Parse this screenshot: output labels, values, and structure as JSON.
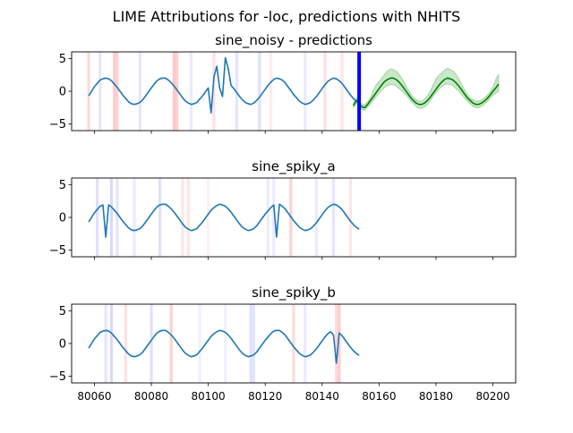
{
  "suptitle": "LIME Attributions for -loc, predictions with NHITS",
  "colors": {
    "series": "#1f77b4",
    "prediction": "#008000",
    "prediction_band": "#2ca02c",
    "cutoff_line": "#0000ff",
    "attr_positive": "#ff0000",
    "attr_negative": "#0000ff"
  },
  "chart_data": [
    {
      "type": "line",
      "title": "sine_noisy - predictions",
      "xlim": [
        80052,
        80208
      ],
      "ylim": [
        -6,
        6
      ],
      "yticks": [
        -5,
        0,
        5
      ],
      "xticks": [
        80060,
        80080,
        80100,
        80120,
        80140,
        80160,
        80180,
        80200
      ],
      "show_xtick_labels": false,
      "history": {
        "x": [
          80058,
          80059,
          80060,
          80061,
          80062,
          80063,
          80064,
          80065,
          80066,
          80067,
          80068,
          80069,
          80070,
          80071,
          80072,
          80073,
          80074,
          80075,
          80076,
          80077,
          80078,
          80079,
          80080,
          80081,
          80082,
          80083,
          80084,
          80085,
          80086,
          80087,
          80088,
          80089,
          80090,
          80091,
          80092,
          80093,
          80094,
          80095,
          80096,
          80097,
          80098,
          80099,
          80100,
          80101,
          80102,
          80103,
          80104,
          80105,
          80106,
          80107,
          80108,
          80109,
          80110,
          80111,
          80112,
          80113,
          80114,
          80115,
          80116,
          80117,
          80118,
          80119,
          80120,
          80121,
          80122,
          80123,
          80124,
          80125,
          80126,
          80127,
          80128,
          80129,
          80130,
          80131,
          80132,
          80133,
          80134,
          80135,
          80136,
          80137,
          80138,
          80139,
          80140,
          80141,
          80142,
          80143,
          80144,
          80145,
          80146,
          80147,
          80148,
          80149,
          80150,
          80151,
          80152,
          80153
        ],
        "y": [
          -0.7,
          0.0,
          0.7,
          1.2,
          1.7,
          1.9,
          2.0,
          1.9,
          1.6,
          1.1,
          0.6,
          0.0,
          -0.6,
          -1.1,
          -1.6,
          -1.9,
          -2.0,
          -1.9,
          -1.7,
          -1.3,
          -0.7,
          -0.1,
          0.5,
          1.1,
          1.6,
          1.9,
          2.0,
          2.0,
          1.7,
          1.3,
          0.8,
          0.2,
          -0.4,
          -1.0,
          -1.5,
          -1.8,
          -2.0,
          -1.9,
          -1.7,
          -1.2,
          -0.7,
          -0.1,
          0.5,
          -3.3,
          2.2,
          3.8,
          0.5,
          -0.8,
          5.1,
          3.5,
          0.9,
          0.4,
          -0.2,
          -0.8,
          -1.3,
          -1.7,
          -1.9,
          -2.0,
          -1.8,
          -1.4,
          -0.9,
          -0.3,
          0.3,
          0.9,
          1.4,
          1.8,
          2.0,
          1.9,
          1.7,
          1.3,
          0.7,
          0.1,
          -0.5,
          -1.0,
          -1.5,
          -1.8,
          -2.0,
          -1.9,
          -1.7,
          -1.3,
          -0.8,
          -0.2,
          0.4,
          1.0,
          1.5,
          1.8,
          2.0,
          1.9,
          1.6,
          1.2,
          0.6,
          0.0,
          -0.6,
          -1.1,
          -1.5,
          -1.8
        ]
      },
      "prediction": {
        "x": [
          80151,
          80152,
          80153,
          80154,
          80155,
          80156,
          80157,
          80158,
          80159,
          80160,
          80161,
          80162,
          80163,
          80164,
          80165,
          80166,
          80167,
          80168,
          80169,
          80170,
          80171,
          80172,
          80173,
          80174,
          80175,
          80176,
          80177,
          80178,
          80179,
          80180,
          80181,
          80182,
          80183,
          80184,
          80185,
          80186,
          80187,
          80188,
          80189,
          80190,
          80191,
          80192,
          80193,
          80194,
          80195,
          80196,
          80197,
          80198,
          80199,
          80200,
          80201,
          80202
        ],
        "y": [
          -2.2,
          -1.4,
          -1.9,
          -2.4,
          -2.5,
          -2.0,
          -1.4,
          -0.8,
          -0.2,
          0.4,
          1.0,
          1.5,
          1.8,
          2.0,
          2.0,
          1.8,
          1.4,
          0.9,
          0.3,
          -0.3,
          -0.9,
          -1.4,
          -1.8,
          -2.0,
          -2.0,
          -1.8,
          -1.4,
          -0.9,
          -0.3,
          0.3,
          0.9,
          1.4,
          1.8,
          2.0,
          1.9,
          1.7,
          1.3,
          0.8,
          0.2,
          -0.4,
          -1.0,
          -1.4,
          -1.8,
          -2.0,
          -2.0,
          -1.8,
          -1.5,
          -1.1,
          -0.6,
          0.0,
          0.5,
          1.1
        ],
        "lower": [
          -2.5,
          -1.8,
          -2.3,
          -2.8,
          -2.9,
          -2.4,
          -1.9,
          -1.4,
          -0.8,
          -0.3,
          0.2,
          0.6,
          0.9,
          1.0,
          1.0,
          0.8,
          0.4,
          0.1,
          -0.4,
          -0.8,
          -1.4,
          -1.9,
          -2.3,
          -2.6,
          -2.6,
          -2.4,
          -2.0,
          -1.4,
          -0.8,
          -0.2,
          0.3,
          0.7,
          1.0,
          1.1,
          1.0,
          0.8,
          0.4,
          0.0,
          -0.5,
          -1.0,
          -1.5,
          -1.9,
          -2.3,
          -2.5,
          -2.5,
          -2.3,
          -2.0,
          -1.6,
          -1.1,
          -0.6,
          -0.3,
          0.0
        ],
        "upper": [
          -1.9,
          -1.0,
          -1.5,
          -2.0,
          -2.1,
          -1.6,
          -1.0,
          0.2,
          1.0,
          1.5,
          2.0,
          2.6,
          3.1,
          3.4,
          3.3,
          3.1,
          2.6,
          2.0,
          1.2,
          0.4,
          -0.3,
          -0.9,
          -1.3,
          -1.5,
          -1.5,
          -1.2,
          -0.7,
          0.0,
          1.0,
          1.9,
          2.4,
          2.8,
          3.2,
          3.5,
          3.3,
          3.1,
          2.6,
          1.9,
          1.1,
          0.2,
          -0.5,
          -1.0,
          -1.3,
          -1.5,
          -1.5,
          -1.3,
          -1.0,
          -0.6,
          -0.1,
          0.6,
          1.8,
          2.6
        ]
      },
      "cutoff_x": 80153,
      "attributions": [
        {
          "x": 80058,
          "sign": "positive",
          "strength": 0.15
        },
        {
          "x": 80062,
          "sign": "negative",
          "strength": 0.1
        },
        {
          "x": 80067,
          "sign": "positive",
          "strength": 0.2
        },
        {
          "x": 80068,
          "sign": "positive",
          "strength": 0.18
        },
        {
          "x": 80076,
          "sign": "negative",
          "strength": 0.1
        },
        {
          "x": 80088,
          "sign": "positive",
          "strength": 0.22
        },
        {
          "x": 80089,
          "sign": "positive",
          "strength": 0.18
        },
        {
          "x": 80094,
          "sign": "negative",
          "strength": 0.08
        },
        {
          "x": 80102,
          "sign": "positive",
          "strength": 0.12
        },
        {
          "x": 80110,
          "sign": "negative",
          "strength": 0.1
        },
        {
          "x": 80118,
          "sign": "negative",
          "strength": 0.12
        },
        {
          "x": 80122,
          "sign": "positive",
          "strength": 0.08
        },
        {
          "x": 80134,
          "sign": "negative",
          "strength": 0.08
        },
        {
          "x": 80141,
          "sign": "positive",
          "strength": 0.12
        },
        {
          "x": 80147,
          "sign": "positive",
          "strength": 0.1
        }
      ]
    },
    {
      "type": "line",
      "title": "sine_spiky_a",
      "xlim": [
        80052,
        80208
      ],
      "ylim": [
        -6,
        6
      ],
      "yticks": [
        -5,
        0,
        5
      ],
      "xticks": [
        80060,
        80080,
        80100,
        80120,
        80140,
        80160,
        80180,
        80200
      ],
      "show_xtick_labels": false,
      "history": {
        "x": [
          80058,
          80059,
          80060,
          80061,
          80062,
          80063,
          80064,
          80065,
          80066,
          80067,
          80068,
          80069,
          80070,
          80071,
          80072,
          80073,
          80074,
          80075,
          80076,
          80077,
          80078,
          80079,
          80080,
          80081,
          80082,
          80083,
          80084,
          80085,
          80086,
          80087,
          80088,
          80089,
          80090,
          80091,
          80092,
          80093,
          80094,
          80095,
          80096,
          80097,
          80098,
          80099,
          80100,
          80101,
          80102,
          80103,
          80104,
          80105,
          80106,
          80107,
          80108,
          80109,
          80110,
          80111,
          80112,
          80113,
          80114,
          80115,
          80116,
          80117,
          80118,
          80119,
          80120,
          80121,
          80122,
          80123,
          80124,
          80125,
          80126,
          80127,
          80128,
          80129,
          80130,
          80131,
          80132,
          80133,
          80134,
          80135,
          80136,
          80137,
          80138,
          80139,
          80140,
          80141,
          80142,
          80143,
          80144,
          80145,
          80146,
          80147,
          80148,
          80149,
          80150,
          80151,
          80152,
          80153
        ],
        "y": [
          -0.7,
          0.0,
          0.7,
          1.2,
          1.7,
          1.9,
          -3.0,
          1.9,
          1.6,
          1.1,
          0.6,
          0.0,
          -0.6,
          -1.1,
          -1.6,
          -1.9,
          -2.0,
          -1.9,
          -1.7,
          -1.3,
          -0.7,
          -0.1,
          0.5,
          1.1,
          1.6,
          1.9,
          2.0,
          2.0,
          1.7,
          1.3,
          0.8,
          0.2,
          -0.4,
          -1.0,
          -1.5,
          -1.8,
          -2.0,
          -1.9,
          -1.7,
          -1.2,
          -0.7,
          -0.1,
          0.5,
          1.1,
          1.5,
          1.8,
          2.0,
          1.9,
          1.7,
          1.3,
          0.8,
          0.2,
          -0.4,
          -1.0,
          -1.5,
          -1.8,
          -2.0,
          -1.9,
          -1.7,
          -1.3,
          -0.7,
          -0.1,
          0.5,
          1.0,
          1.5,
          1.9,
          -3.0,
          2.0,
          1.7,
          1.3,
          0.7,
          0.1,
          -0.5,
          -1.0,
          -1.5,
          -1.8,
          -2.0,
          -1.9,
          -1.7,
          -1.3,
          -0.8,
          -0.2,
          0.4,
          1.0,
          1.5,
          1.8,
          2.0,
          1.9,
          1.6,
          1.2,
          0.6,
          0.0,
          -0.6,
          -1.1,
          -1.5,
          -1.8
        ]
      },
      "attributions": [
        {
          "x": 80061,
          "sign": "negative",
          "strength": 0.12
        },
        {
          "x": 80066,
          "sign": "negative",
          "strength": 0.15
        },
        {
          "x": 80068,
          "sign": "negative",
          "strength": 0.1
        },
        {
          "x": 80074,
          "sign": "negative",
          "strength": 0.08
        },
        {
          "x": 80083,
          "sign": "negative",
          "strength": 0.12
        },
        {
          "x": 80091,
          "sign": "positive",
          "strength": 0.1
        },
        {
          "x": 80093,
          "sign": "positive",
          "strength": 0.1
        },
        {
          "x": 80100,
          "sign": "positive",
          "strength": 0.06
        },
        {
          "x": 80121,
          "sign": "negative",
          "strength": 0.08
        },
        {
          "x": 80123,
          "sign": "negative",
          "strength": 0.08
        },
        {
          "x": 80129,
          "sign": "positive",
          "strength": 0.18
        },
        {
          "x": 80138,
          "sign": "negative",
          "strength": 0.08
        },
        {
          "x": 80144,
          "sign": "negative",
          "strength": 0.1
        },
        {
          "x": 80150,
          "sign": "positive",
          "strength": 0.1
        }
      ]
    },
    {
      "type": "line",
      "title": "sine_spiky_b",
      "xlim": [
        80052,
        80208
      ],
      "ylim": [
        -6,
        6
      ],
      "yticks": [
        -5,
        0,
        5
      ],
      "xticks": [
        80060,
        80080,
        80100,
        80120,
        80140,
        80160,
        80180,
        80200
      ],
      "xtick_labels": [
        "80060",
        "80080",
        "80100",
        "80120",
        "80140",
        "80160",
        "80180",
        "80200"
      ],
      "show_xtick_labels": true,
      "history": {
        "x": [
          80058,
          80059,
          80060,
          80061,
          80062,
          80063,
          80064,
          80065,
          80066,
          80067,
          80068,
          80069,
          80070,
          80071,
          80072,
          80073,
          80074,
          80075,
          80076,
          80077,
          80078,
          80079,
          80080,
          80081,
          80082,
          80083,
          80084,
          80085,
          80086,
          80087,
          80088,
          80089,
          80090,
          80091,
          80092,
          80093,
          80094,
          80095,
          80096,
          80097,
          80098,
          80099,
          80100,
          80101,
          80102,
          80103,
          80104,
          80105,
          80106,
          80107,
          80108,
          80109,
          80110,
          80111,
          80112,
          80113,
          80114,
          80115,
          80116,
          80117,
          80118,
          80119,
          80120,
          80121,
          80122,
          80123,
          80124,
          80125,
          80126,
          80127,
          80128,
          80129,
          80130,
          80131,
          80132,
          80133,
          80134,
          80135,
          80136,
          80137,
          80138,
          80139,
          80140,
          80141,
          80142,
          80143,
          80144,
          80145,
          80146,
          80147,
          80148,
          80149,
          80150,
          80151,
          80152,
          80153
        ],
        "y": [
          -0.7,
          0.0,
          0.7,
          1.2,
          1.7,
          1.9,
          2.0,
          1.9,
          1.6,
          1.1,
          0.6,
          0.0,
          -0.6,
          -1.1,
          -1.6,
          -1.9,
          -2.0,
          -1.9,
          -1.7,
          -1.3,
          -0.7,
          -0.1,
          0.5,
          1.1,
          1.6,
          1.9,
          2.0,
          2.0,
          1.7,
          1.3,
          0.8,
          0.2,
          -0.4,
          -1.0,
          -1.5,
          -1.8,
          -2.0,
          -1.9,
          -1.7,
          -1.2,
          -0.7,
          -0.1,
          0.5,
          1.1,
          1.5,
          1.8,
          2.0,
          1.9,
          1.7,
          1.3,
          0.8,
          0.2,
          -0.4,
          -1.0,
          -1.5,
          -1.8,
          -2.0,
          -1.9,
          -1.7,
          -1.3,
          -0.7,
          -0.1,
          0.5,
          1.0,
          1.5,
          1.9,
          2.0,
          2.0,
          1.7,
          1.3,
          0.7,
          0.1,
          -0.5,
          -1.0,
          -1.5,
          -1.8,
          -2.0,
          -1.9,
          -1.7,
          -1.3,
          -0.8,
          -0.2,
          0.4,
          1.0,
          1.5,
          1.8,
          1.3,
          -3.0,
          1.6,
          1.2,
          0.6,
          0.0,
          -0.6,
          -1.1,
          -1.5,
          -1.8
        ]
      },
      "attributions": [
        {
          "x": 80064,
          "sign": "negative",
          "strength": 0.1
        },
        {
          "x": 80066,
          "sign": "negative",
          "strength": 0.15
        },
        {
          "x": 80071,
          "sign": "positive",
          "strength": 0.12
        },
        {
          "x": 80080,
          "sign": "negative",
          "strength": 0.12
        },
        {
          "x": 80087,
          "sign": "positive",
          "strength": 0.18
        },
        {
          "x": 80097,
          "sign": "negative",
          "strength": 0.06
        },
        {
          "x": 80106,
          "sign": "negative",
          "strength": 0.06
        },
        {
          "x": 80115,
          "sign": "negative",
          "strength": 0.12
        },
        {
          "x": 80116,
          "sign": "negative",
          "strength": 0.1
        },
        {
          "x": 80130,
          "sign": "positive",
          "strength": 0.14
        },
        {
          "x": 80134,
          "sign": "negative",
          "strength": 0.08
        },
        {
          "x": 80145,
          "sign": "positive",
          "strength": 0.15
        },
        {
          "x": 80146,
          "sign": "positive",
          "strength": 0.2
        }
      ]
    }
  ]
}
